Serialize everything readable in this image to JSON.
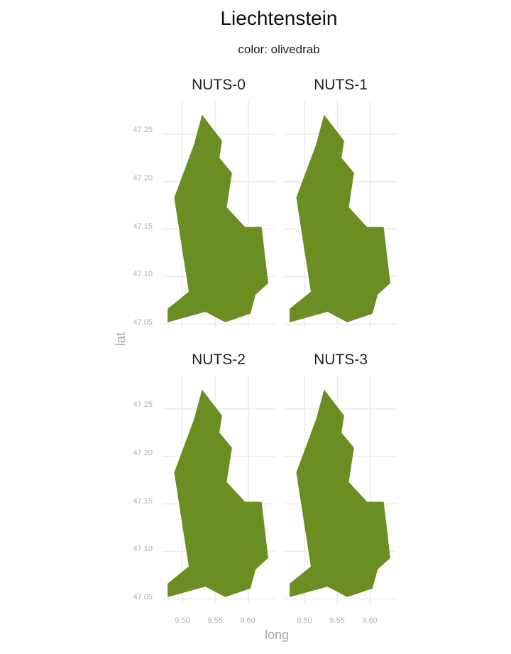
{
  "title": "Liechtenstein",
  "subtitle": "color: olivedrab",
  "axes": {
    "xlabel": "long",
    "ylabel": "lat"
  },
  "fill_color": "#6b8e23",
  "grid_color": "#ebebeb",
  "chart_data": {
    "type": "map",
    "xlim": [
      9.47,
      9.64
    ],
    "ylim": [
      47.045,
      47.285
    ],
    "x_ticks": [
      "9.50",
      "9.55",
      "9.60"
    ],
    "y_ticks": [
      "47.05",
      "47.10",
      "47.15",
      "47.20",
      "47.25"
    ],
    "grid": true,
    "panels": [
      {
        "label": "NUTS-0"
      },
      {
        "label": "NUTS-1"
      },
      {
        "label": "NUTS-2"
      },
      {
        "label": "NUTS-3"
      }
    ],
    "polygon": {
      "long": [
        9.53,
        9.56,
        9.556,
        9.575,
        9.567,
        9.595,
        9.62,
        9.63,
        9.611,
        9.603,
        9.565,
        9.535,
        9.478,
        9.478,
        9.51,
        9.488,
        9.518
      ],
      "lat": [
        47.27,
        47.243,
        47.225,
        47.209,
        47.173,
        47.152,
        47.152,
        47.093,
        47.081,
        47.061,
        47.052,
        47.063,
        47.052,
        47.066,
        47.084,
        47.183,
        47.239
      ]
    }
  }
}
